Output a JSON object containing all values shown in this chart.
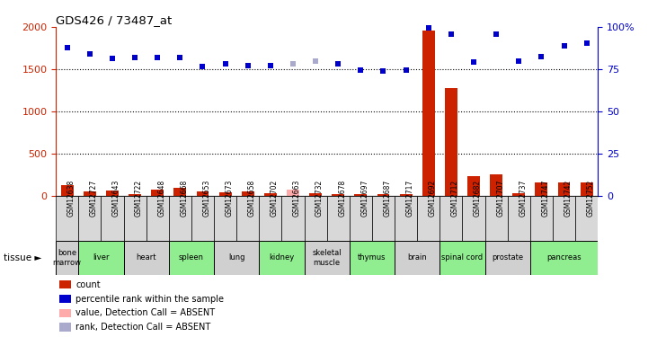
{
  "title": "GDS426 / 73487_at",
  "samples": [
    "GSM12638",
    "GSM12727",
    "GSM12643",
    "GSM12722",
    "GSM12648",
    "GSM12668",
    "GSM12653",
    "GSM12673",
    "GSM12658",
    "GSM12702",
    "GSM12663",
    "GSM12732",
    "GSM12678",
    "GSM12697",
    "GSM12687",
    "GSM12717",
    "GSM12692",
    "GSM12712",
    "GSM12682",
    "GSM12707",
    "GSM12737",
    "GSM12747",
    "GSM12742",
    "GSM12752"
  ],
  "count_values": [
    120,
    50,
    60,
    20,
    70,
    90,
    50,
    40,
    50,
    30,
    70,
    30,
    20,
    20,
    20,
    20,
    1960,
    1280,
    230,
    250,
    30,
    150,
    150,
    150
  ],
  "count_absent": [
    false,
    false,
    false,
    false,
    false,
    false,
    false,
    false,
    false,
    false,
    true,
    false,
    false,
    false,
    false,
    false,
    false,
    false,
    false,
    false,
    false,
    false,
    false,
    false
  ],
  "rank_values": [
    1750,
    1680,
    1630,
    1640,
    1640,
    1640,
    1530,
    1560,
    1540,
    1540,
    1560,
    1600,
    1560,
    1490,
    1480,
    1490,
    1990,
    1920,
    1580,
    1910,
    1590,
    1650,
    1780,
    1810
  ],
  "rank_absent": [
    false,
    false,
    false,
    false,
    false,
    false,
    false,
    false,
    false,
    false,
    true,
    true,
    false,
    false,
    false,
    false,
    false,
    false,
    false,
    false,
    false,
    false,
    false,
    false
  ],
  "tissues": [
    {
      "name": "bone\nmarrow",
      "start": 0,
      "end": 1,
      "color": "#d0d0d0"
    },
    {
      "name": "liver",
      "start": 1,
      "end": 3,
      "color": "#90ee90"
    },
    {
      "name": "heart",
      "start": 3,
      "end": 5,
      "color": "#d0d0d0"
    },
    {
      "name": "spleen",
      "start": 5,
      "end": 7,
      "color": "#90ee90"
    },
    {
      "name": "lung",
      "start": 7,
      "end": 9,
      "color": "#d0d0d0"
    },
    {
      "name": "kidney",
      "start": 9,
      "end": 11,
      "color": "#90ee90"
    },
    {
      "name": "skeletal\nmuscle",
      "start": 11,
      "end": 13,
      "color": "#d0d0d0"
    },
    {
      "name": "thymus",
      "start": 13,
      "end": 15,
      "color": "#90ee90"
    },
    {
      "name": "brain",
      "start": 15,
      "end": 17,
      "color": "#d0d0d0"
    },
    {
      "name": "spinal cord",
      "start": 17,
      "end": 19,
      "color": "#90ee90"
    },
    {
      "name": "prostate",
      "start": 19,
      "end": 21,
      "color": "#d0d0d0"
    },
    {
      "name": "pancreas",
      "start": 21,
      "end": 24,
      "color": "#90ee90"
    }
  ],
  "ylim_left": [
    0,
    2000
  ],
  "ylim_right": [
    0,
    100
  ],
  "yticks_left": [
    0,
    500,
    1000,
    1500,
    2000
  ],
  "yticks_right": [
    0,
    25,
    50,
    75,
    100
  ],
  "color_count": "#cc2200",
  "color_count_absent": "#ffaaaa",
  "color_rank": "#0000cc",
  "color_rank_absent": "#aaaacc",
  "legend_items": [
    {
      "label": "count",
      "color": "#cc2200"
    },
    {
      "label": "percentile rank within the sample",
      "color": "#0000cc"
    },
    {
      "label": "value, Detection Call = ABSENT",
      "color": "#ffaaaa"
    },
    {
      "label": "rank, Detection Call = ABSENT",
      "color": "#aaaacc"
    }
  ]
}
